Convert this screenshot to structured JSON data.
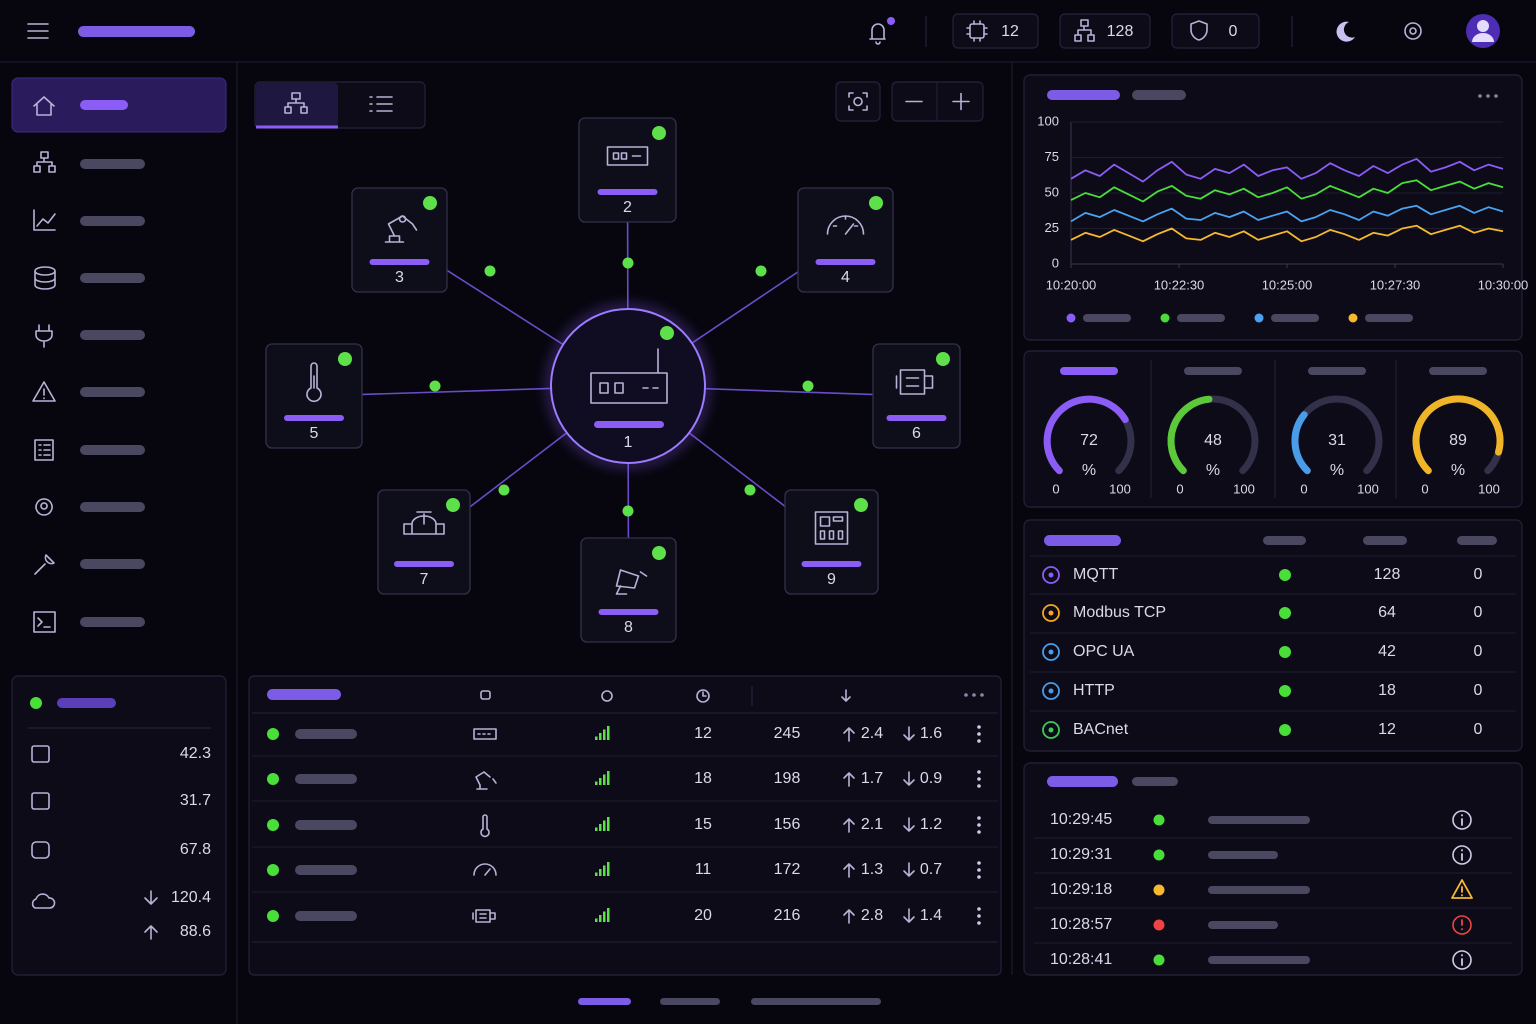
{
  "topbar": {
    "counters": [
      12,
      128,
      0
    ]
  },
  "network": {
    "nodes": [
      {
        "label": "1"
      },
      {
        "label": "2"
      },
      {
        "label": "3"
      },
      {
        "label": "4"
      },
      {
        "label": "5"
      },
      {
        "label": "6"
      },
      {
        "label": "7"
      },
      {
        "label": "8"
      },
      {
        "label": "9"
      }
    ]
  },
  "system_stats": {
    "values": [
      42.3,
      31.7,
      67.8
    ],
    "download": 120.4,
    "upload": 88.6
  },
  "devices": {
    "rows": [
      [
        12,
        245,
        2.4,
        1.6
      ],
      [
        18,
        198,
        1.7,
        0.9
      ],
      [
        15,
        156,
        2.1,
        1.2
      ],
      [
        11,
        172,
        1.3,
        0.7
      ],
      [
        20,
        216,
        2.8,
        1.4
      ]
    ]
  },
  "chart_data": [
    {
      "type": "line",
      "x": [
        "10:20:00",
        "10:20:20",
        "10:20:40",
        "10:21:00",
        "10:21:20",
        "10:21:40",
        "10:22:00",
        "10:22:20",
        "10:22:40",
        "10:23:00",
        "10:23:20",
        "10:23:40",
        "10:24:00",
        "10:24:20",
        "10:24:40",
        "10:25:00",
        "10:25:20",
        "10:25:40",
        "10:26:00",
        "10:26:20",
        "10:26:40",
        "10:27:00",
        "10:27:20",
        "10:27:40",
        "10:28:00",
        "10:28:20",
        "10:28:40",
        "10:29:00",
        "10:29:20",
        "10:29:40",
        "10:30:00"
      ],
      "xlim": [
        "10:20:00",
        "10:30:00"
      ],
      "xticks": [
        "10:20:00",
        "10:22:30",
        "10:25:00",
        "10:27:30",
        "10:30:00"
      ],
      "ylim": [
        0,
        100
      ],
      "yticks": [
        0,
        25,
        50,
        75,
        100
      ],
      "grid": true,
      "series": [
        {
          "color": "#8b5cf6",
          "values": [
            60,
            66,
            62,
            70,
            64,
            58,
            66,
            72,
            63,
            60,
            67,
            64,
            70,
            62,
            66,
            68,
            60,
            64,
            71,
            66,
            62,
            69,
            64,
            70,
            74,
            65,
            68,
            72,
            66,
            70,
            67
          ]
        },
        {
          "color": "#4ade3a",
          "values": [
            45,
            50,
            47,
            54,
            49,
            44,
            51,
            55,
            48,
            46,
            52,
            49,
            53,
            47,
            50,
            54,
            46,
            49,
            55,
            51,
            47,
            53,
            50,
            57,
            59,
            52,
            55,
            58,
            53,
            57,
            54
          ]
        },
        {
          "color": "#4aa3f0",
          "values": [
            30,
            36,
            33,
            38,
            34,
            30,
            35,
            39,
            32,
            31,
            36,
            33,
            37,
            31,
            34,
            37,
            30,
            33,
            38,
            35,
            31,
            37,
            34,
            39,
            41,
            35,
            38,
            41,
            36,
            40,
            37
          ]
        },
        {
          "color": "#f5b82e",
          "values": [
            17,
            22,
            19,
            24,
            20,
            16,
            21,
            25,
            18,
            17,
            22,
            19,
            23,
            17,
            20,
            23,
            16,
            19,
            24,
            21,
            17,
            22,
            20,
            25,
            27,
            21,
            24,
            27,
            22,
            25,
            23
          ]
        }
      ]
    },
    {
      "type": "gauge",
      "value": 72,
      "unit": "%",
      "min": 0,
      "max": 100,
      "color": "#8b5cf6"
    },
    {
      "type": "gauge",
      "value": 48,
      "unit": "%",
      "min": 0,
      "max": 100,
      "color": "#5cc93a"
    },
    {
      "type": "gauge",
      "value": 31,
      "unit": "%",
      "min": 0,
      "max": 100,
      "color": "#4a9be8"
    },
    {
      "type": "gauge",
      "value": 89,
      "unit": "%",
      "min": 0,
      "max": 100,
      "color": "#f0b429"
    }
  ],
  "protocols": {
    "rows": [
      {
        "name": "MQTT",
        "count": 128,
        "errors": 0,
        "color": "#8b5cf6"
      },
      {
        "name": "Modbus TCP",
        "count": 64,
        "errors": 0,
        "color": "#f5a623"
      },
      {
        "name": "OPC UA",
        "count": 42,
        "errors": 0,
        "color": "#4a9be8"
      },
      {
        "name": "HTTP",
        "count": 18,
        "errors": 0,
        "color": "#4a9be8"
      },
      {
        "name": "BACnet",
        "count": 12,
        "errors": 0,
        "color": "#3ec95a"
      }
    ]
  },
  "events": {
    "rows": [
      {
        "time": "10:29:45",
        "status_color": "#4ade3a"
      },
      {
        "time": "10:29:31",
        "status_color": "#4ade3a"
      },
      {
        "time": "10:29:18",
        "status_color": "#f5b82e"
      },
      {
        "time": "10:28:57",
        "status_color": "#ef4444"
      },
      {
        "time": "10:28:41",
        "status_color": "#4ade3a"
      }
    ]
  }
}
